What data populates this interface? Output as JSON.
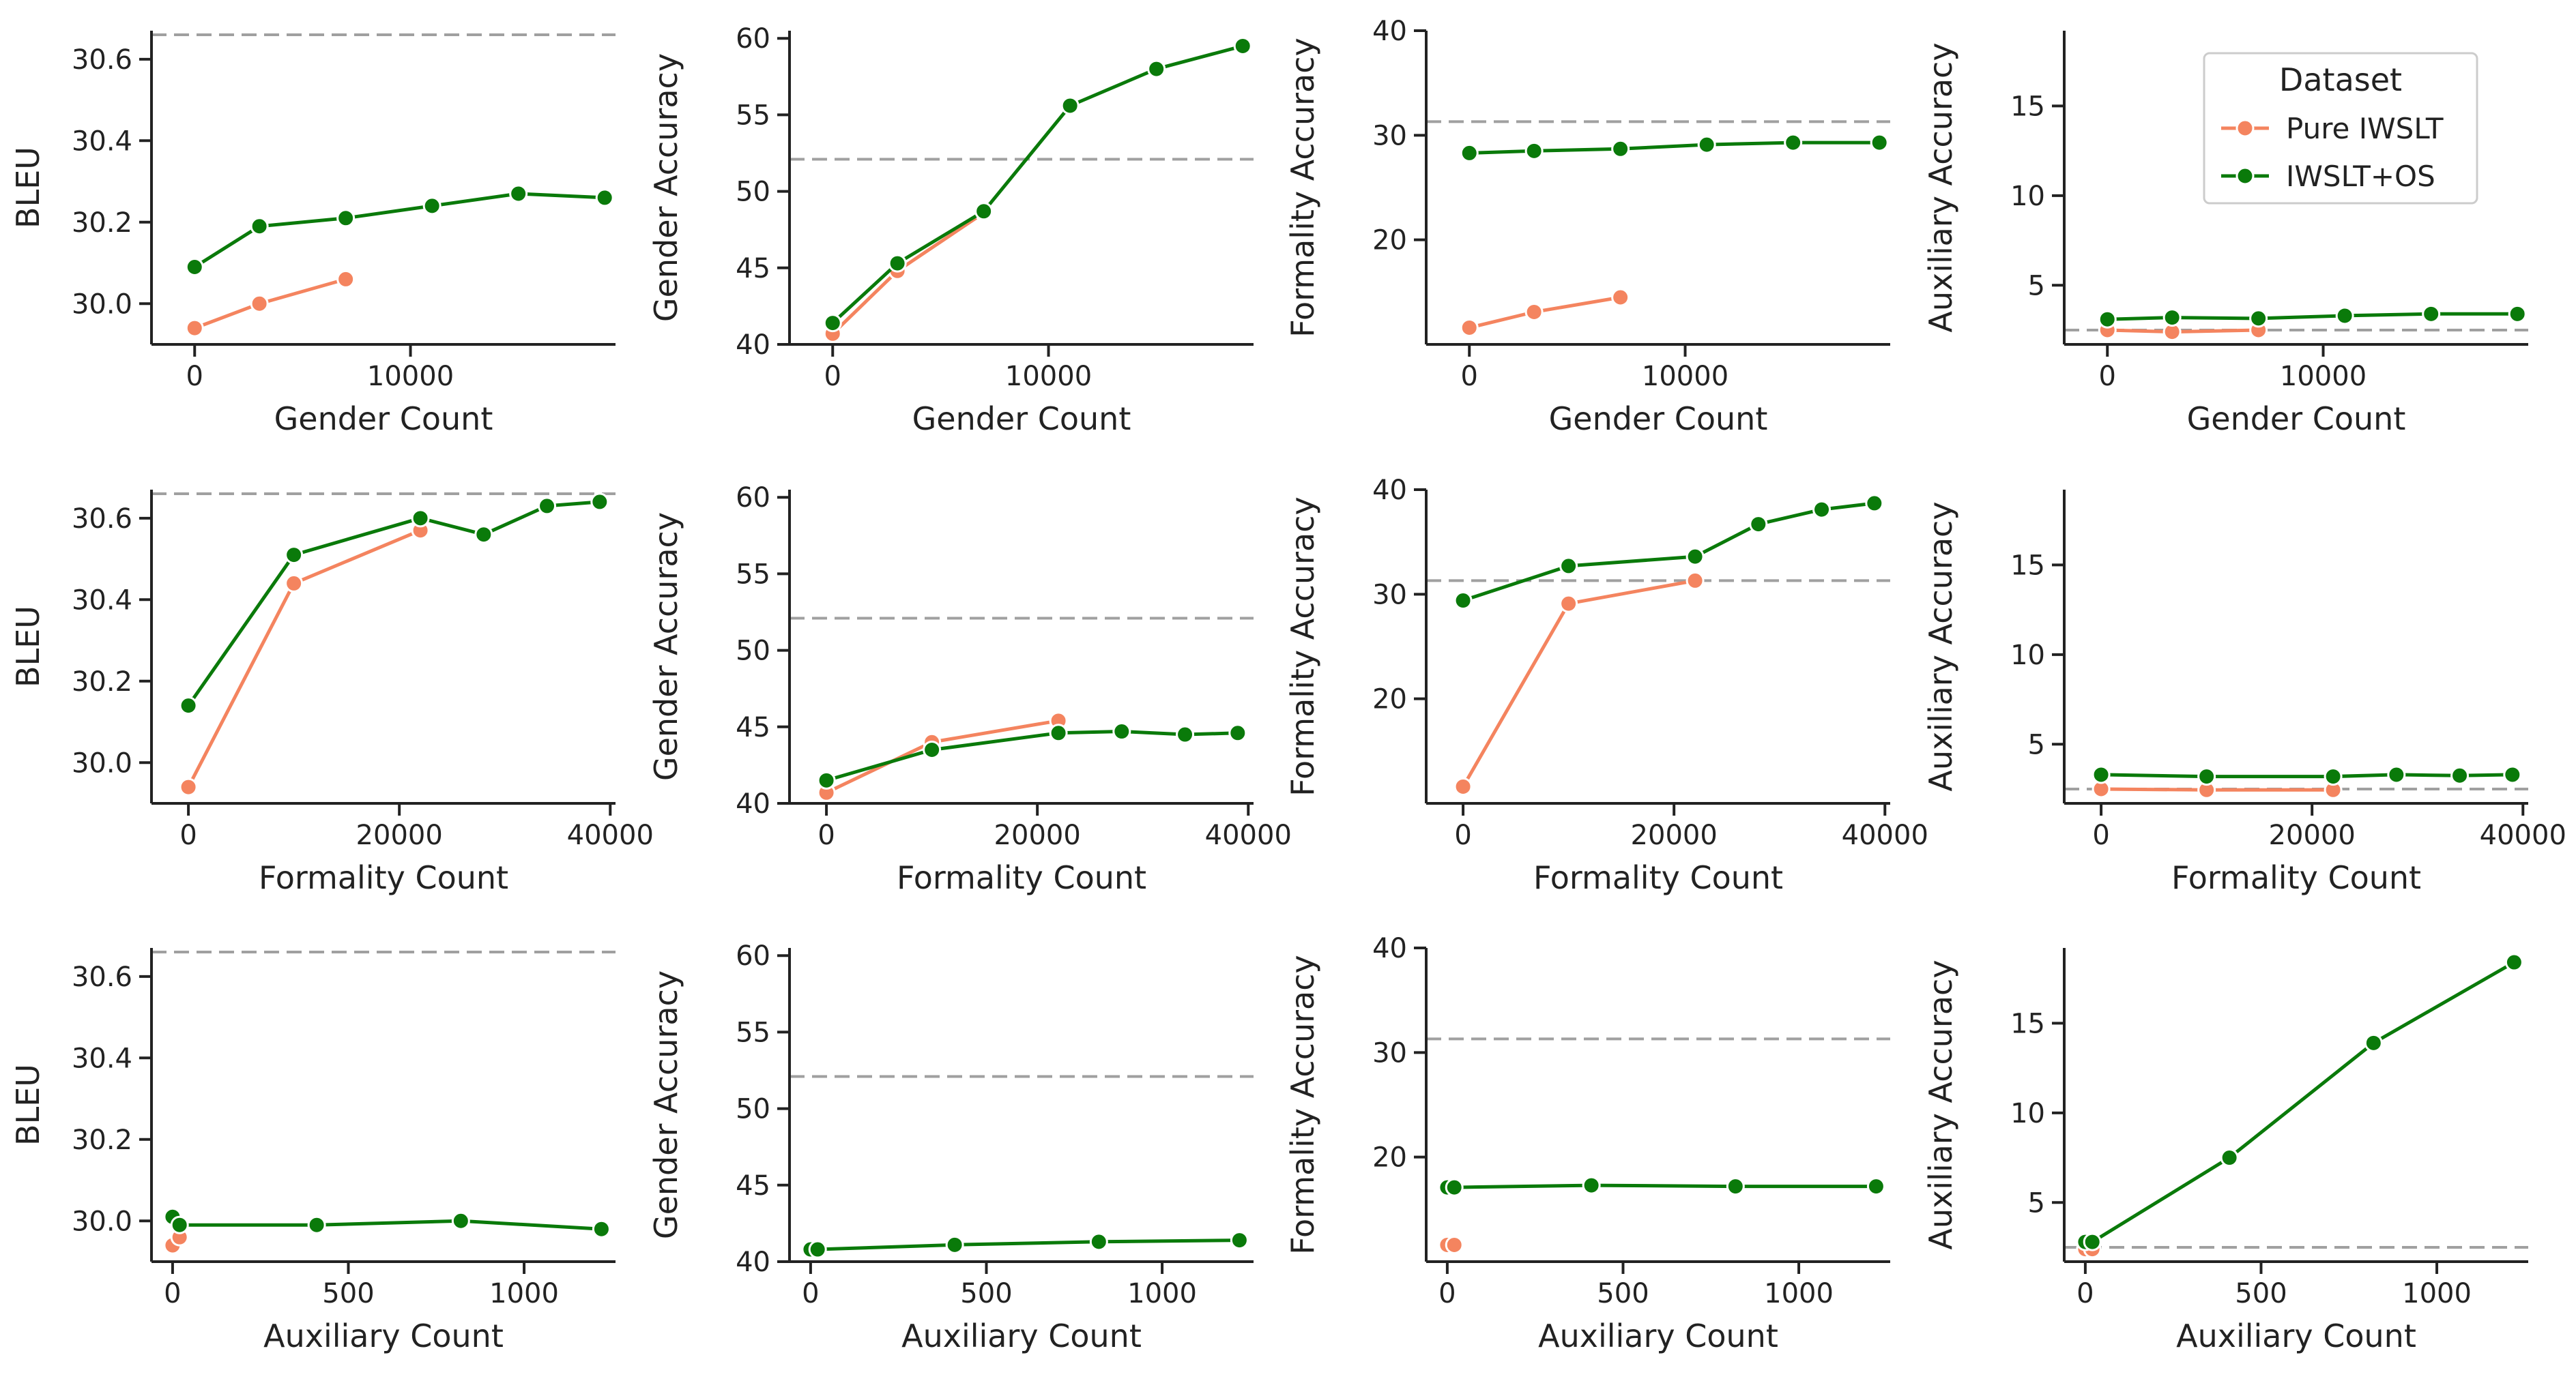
{
  "chart_data": {
    "type": "line",
    "layout": "3x4 grid",
    "legend": {
      "title": "Dataset",
      "placement": "top-right (first row, fourth panel)",
      "entries": [
        {
          "name": "Pure IWSLT",
          "color": "#f4845f"
        },
        {
          "name": "IWSLT+OS",
          "color": "#0a7a0a"
        }
      ]
    },
    "reference_line": {
      "style": "dashed",
      "color": "#a0a0a0"
    },
    "rows": [
      {
        "xlabel": "Gender Count",
        "xlim": [
          -2000,
          19500
        ],
        "xticks": [
          0,
          10000
        ],
        "xtick_labels": [
          "0",
          "10000"
        ]
      },
      {
        "xlabel": "Formality Count",
        "xlim": [
          -3500,
          40500
        ],
        "xticks": [
          0,
          20000,
          40000
        ],
        "xtick_labels": [
          "0",
          "20000",
          "40000"
        ]
      },
      {
        "xlabel": "Auxiliary Count",
        "xlim": [
          -60,
          1260
        ],
        "xticks": [
          0,
          500,
          1000
        ],
        "xtick_labels": [
          "0",
          "500",
          "1000"
        ]
      }
    ],
    "columns": [
      {
        "ylabel": "BLEU",
        "ylim": [
          29.9,
          30.67
        ],
        "yticks": [
          30.0,
          30.2,
          30.4,
          30.6
        ],
        "ytick_labels": [
          "30.0",
          "30.2",
          "30.4",
          "30.6"
        ],
        "reference": 30.66
      },
      {
        "ylabel": "Gender Accuracy",
        "ylim": [
          40,
          60.5
        ],
        "yticks": [
          40,
          45,
          50,
          55,
          60
        ],
        "ytick_labels": [
          "40",
          "45",
          "50",
          "55",
          "60"
        ],
        "reference": 52.1
      },
      {
        "ylabel": "Formality Accuracy",
        "ylim": [
          10,
          40
        ],
        "yticks": [
          20,
          30,
          40
        ],
        "ytick_labels": [
          "20",
          "30",
          "40"
        ],
        "reference": 31.3
      },
      {
        "ylabel": "Auxiliary Accuracy",
        "ylim": [
          1.7,
          19.2
        ],
        "yticks": [
          5,
          10,
          15
        ],
        "ytick_labels": [
          "5",
          "10",
          "15"
        ],
        "reference": 2.5
      }
    ],
    "panels": [
      {
        "row": 0,
        "col": 0,
        "series": [
          {
            "name": "Pure IWSLT",
            "x": [
              0,
              3000,
              7000
            ],
            "y": [
              29.94,
              30.0,
              30.06
            ]
          },
          {
            "name": "IWSLT+OS",
            "x": [
              0,
              3000,
              7000,
              11000,
              15000,
              19000
            ],
            "y": [
              30.09,
              30.19,
              30.21,
              30.24,
              30.27,
              30.26
            ]
          }
        ]
      },
      {
        "row": 0,
        "col": 1,
        "series": [
          {
            "name": "Pure IWSLT",
            "x": [
              0,
              3000,
              7000
            ],
            "y": [
              40.7,
              44.8,
              48.6
            ]
          },
          {
            "name": "IWSLT+OS",
            "x": [
              0,
              3000,
              7000,
              11000,
              15000,
              19000
            ],
            "y": [
              41.4,
              45.3,
              48.7,
              55.6,
              58.0,
              59.5
            ]
          }
        ]
      },
      {
        "row": 0,
        "col": 2,
        "series": [
          {
            "name": "Pure IWSLT",
            "x": [
              0,
              3000,
              7000
            ],
            "y": [
              11.6,
              13.1,
              14.5
            ]
          },
          {
            "name": "IWSLT+OS",
            "x": [
              0,
              3000,
              7000,
              11000,
              15000,
              19000
            ],
            "y": [
              28.3,
              28.5,
              28.7,
              29.1,
              29.3,
              29.3
            ]
          }
        ]
      },
      {
        "row": 0,
        "col": 3,
        "series": [
          {
            "name": "Pure IWSLT",
            "x": [
              0,
              3000,
              7000
            ],
            "y": [
              2.5,
              2.4,
              2.5
            ]
          },
          {
            "name": "IWSLT+OS",
            "x": [
              0,
              3000,
              7000,
              11000,
              15000,
              19000
            ],
            "y": [
              3.1,
              3.2,
              3.15,
              3.3,
              3.4,
              3.4
            ]
          }
        ]
      },
      {
        "row": 1,
        "col": 0,
        "series": [
          {
            "name": "Pure IWSLT",
            "x": [
              0,
              10000,
              22000
            ],
            "y": [
              29.94,
              30.44,
              30.57
            ]
          },
          {
            "name": "IWSLT+OS",
            "x": [
              0,
              10000,
              22000,
              28000,
              34000,
              39000
            ],
            "y": [
              30.14,
              30.51,
              30.6,
              30.56,
              30.63,
              30.64
            ]
          }
        ]
      },
      {
        "row": 1,
        "col": 1,
        "series": [
          {
            "name": "Pure IWSLT",
            "x": [
              0,
              10000,
              22000
            ],
            "y": [
              40.7,
              44.0,
              45.4
            ]
          },
          {
            "name": "IWSLT+OS",
            "x": [
              0,
              10000,
              22000,
              28000,
              34000,
              39000
            ],
            "y": [
              41.5,
              43.5,
              44.6,
              44.7,
              44.5,
              44.6
            ]
          }
        ]
      },
      {
        "row": 1,
        "col": 2,
        "series": [
          {
            "name": "Pure IWSLT",
            "x": [
              0,
              10000,
              22000
            ],
            "y": [
              11.6,
              29.1,
              31.3
            ]
          },
          {
            "name": "IWSLT+OS",
            "x": [
              0,
              10000,
              22000,
              28000,
              34000,
              39000
            ],
            "y": [
              29.4,
              32.7,
              33.6,
              36.7,
              38.1,
              38.7
            ]
          }
        ]
      },
      {
        "row": 1,
        "col": 3,
        "series": [
          {
            "name": "Pure IWSLT",
            "x": [
              0,
              10000,
              22000
            ],
            "y": [
              2.5,
              2.45,
              2.45
            ]
          },
          {
            "name": "IWSLT+OS",
            "x": [
              0,
              10000,
              22000,
              28000,
              34000,
              39000
            ],
            "y": [
              3.3,
              3.2,
              3.2,
              3.3,
              3.25,
              3.3
            ]
          }
        ]
      },
      {
        "row": 2,
        "col": 0,
        "series": [
          {
            "name": "Pure IWSLT",
            "x": [
              0,
              20
            ],
            "y": [
              29.94,
              29.96
            ]
          },
          {
            "name": "IWSLT+OS",
            "x": [
              0,
              20,
              410,
              820,
              1220
            ],
            "y": [
              30.01,
              29.99,
              29.99,
              30.0,
              29.98
            ]
          }
        ]
      },
      {
        "row": 2,
        "col": 1,
        "series": [
          {
            "name": "Pure IWSLT",
            "x": [
              0,
              20
            ],
            "y": [
              40.8,
              40.8
            ]
          },
          {
            "name": "IWSLT+OS",
            "x": [
              0,
              20,
              410,
              820,
              1220
            ],
            "y": [
              40.8,
              40.8,
              41.1,
              41.3,
              41.4
            ]
          }
        ]
      },
      {
        "row": 2,
        "col": 2,
        "series": [
          {
            "name": "Pure IWSLT",
            "x": [
              0,
              20
            ],
            "y": [
              11.6,
              11.6
            ]
          },
          {
            "name": "IWSLT+OS",
            "x": [
              0,
              20,
              410,
              820,
              1220
            ],
            "y": [
              17.1,
              17.1,
              17.3,
              17.2,
              17.2
            ]
          }
        ]
      },
      {
        "row": 2,
        "col": 3,
        "series": [
          {
            "name": "Pure IWSLT",
            "x": [
              0,
              20
            ],
            "y": [
              2.4,
              2.4
            ]
          },
          {
            "name": "IWSLT+OS",
            "x": [
              0,
              20,
              410,
              820,
              1220
            ],
            "y": [
              2.8,
              2.8,
              7.5,
              13.9,
              18.4
            ]
          }
        ]
      }
    ]
  }
}
